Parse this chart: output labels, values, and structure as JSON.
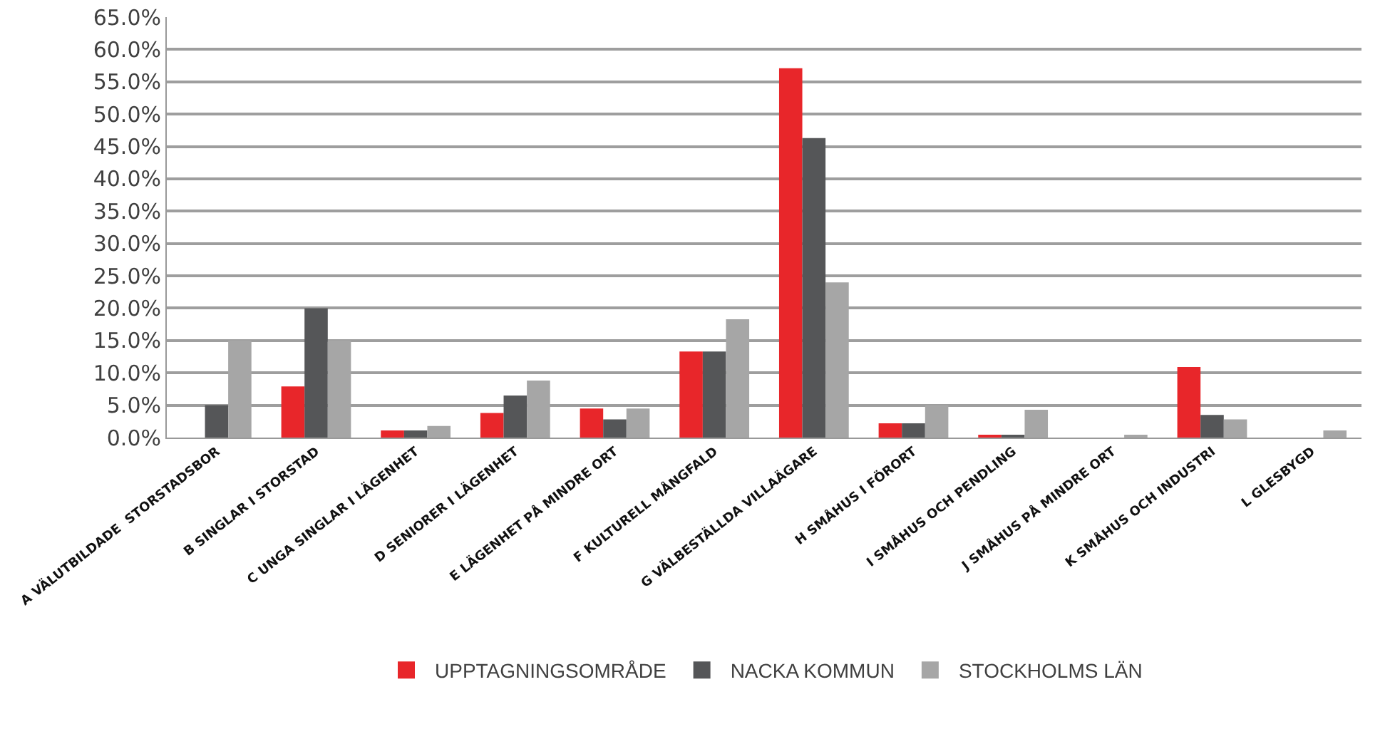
{
  "chart_data": {
    "type": "bar",
    "categories": [
      "A VÄLUTBILDADE  STORSTADSBOR",
      "B SINGLAR I STORSTAD",
      "C UNGA SINGLAR I LÄGENHET",
      "D SENIORER I LÄGENHET",
      "E LÄGENHET PÅ MINDRE ORT",
      "F KULTURELL MÅNGFALD",
      "G VÄLBESTÄLLDA VILLAÄGARE",
      "H SMÅHUS I FÖRORT",
      "I SMÅHUS OCH PENDLING",
      "J SMÅHUS PÅ MINDRE ORT",
      "K SMÅHUS OCH INDUSTRI",
      "L GLESBYGD"
    ],
    "series": [
      {
        "name": "UPPTAGNINGSOMRÅDE",
        "color": "#e8262a",
        "values": [
          0,
          7.9,
          1.1,
          3.8,
          4.5,
          13.3,
          57.1,
          2.2,
          0.3,
          0,
          10.9,
          0
        ]
      },
      {
        "name": "NACKA KOMMUN",
        "color": "#555658",
        "values": [
          5.0,
          20.0,
          1.1,
          6.5,
          2.8,
          13.3,
          46.3,
          2.2,
          0.3,
          0,
          3.5,
          0
        ]
      },
      {
        "name": "STOCKHOLMS LÄN",
        "color": "#a6a6a6",
        "values": [
          15.0,
          15.0,
          1.8,
          8.8,
          4.5,
          18.3,
          24.0,
          5.0,
          4.3,
          0.3,
          2.8,
          1.1
        ]
      }
    ],
    "ylim": [
      0,
      65
    ],
    "yticks": [
      {
        "value": 0,
        "label": "0.0%"
      },
      {
        "value": 5,
        "label": "5.0%"
      },
      {
        "value": 10,
        "label": "10.0%"
      },
      {
        "value": 15,
        "label": "15.0%"
      },
      {
        "value": 20,
        "label": "20.0%"
      },
      {
        "value": 25,
        "label": "25.0%"
      },
      {
        "value": 30,
        "label": "30.0%"
      },
      {
        "value": 35,
        "label": "35.0%"
      },
      {
        "value": 40,
        "label": "40.0%"
      },
      {
        "value": 45,
        "label": "45.0%"
      },
      {
        "value": 50,
        "label": "50.0%"
      },
      {
        "value": 55,
        "label": "55.0%"
      },
      {
        "value": 60,
        "label": "60.0%"
      },
      {
        "value": 65,
        "label": "65.0%"
      }
    ],
    "grid": "y",
    "legend": "bottom"
  }
}
